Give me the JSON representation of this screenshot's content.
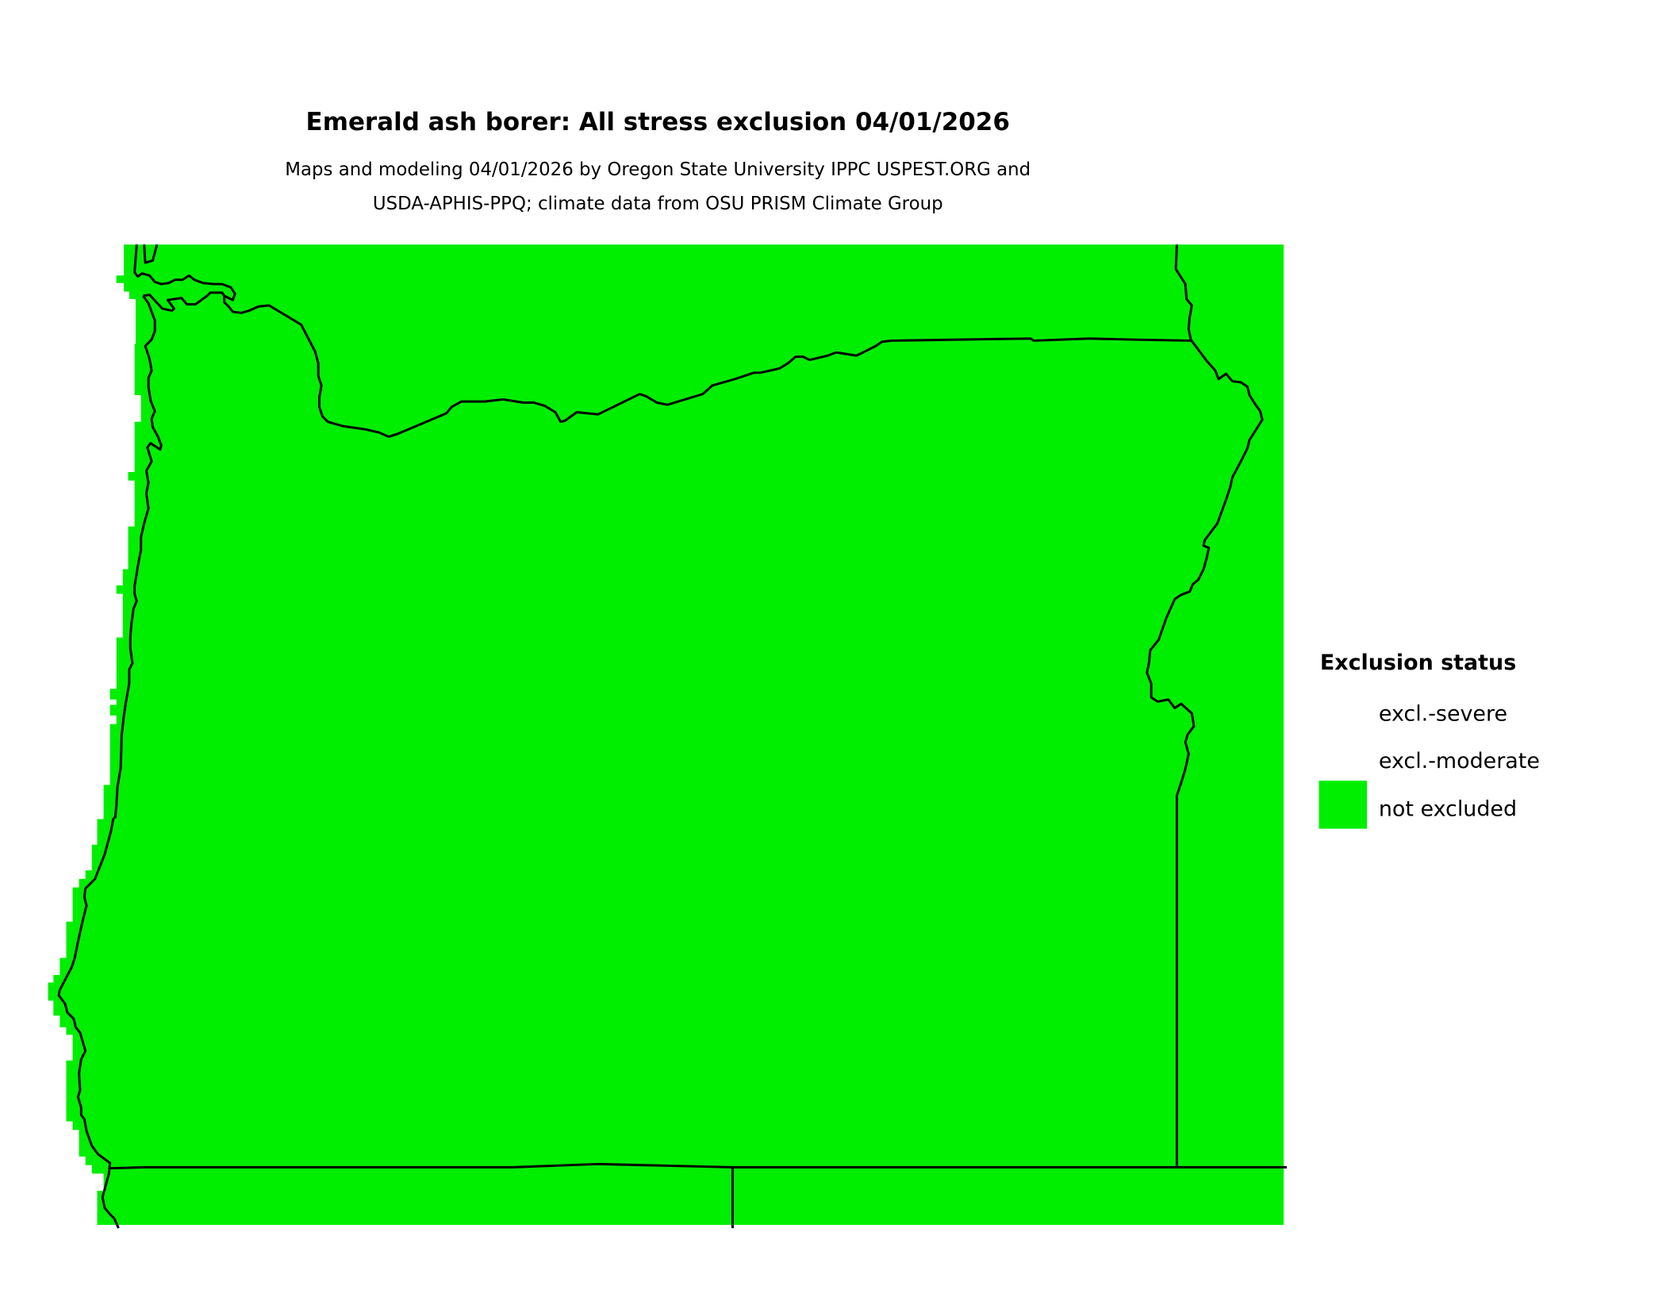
{
  "title": "Emerald ash borer: All stress exclusion 04/01/2026",
  "subtitle_line1": "Maps and modeling 04/01/2026 by Oregon State University IPPC USPEST.ORG and",
  "subtitle_line2": "USDA-APHIS-PPQ; climate data from OSU PRISM Climate Group",
  "legend": {
    "title": "Exclusion status",
    "items": [
      {
        "label": "excl.-severe",
        "color": ""
      },
      {
        "label": "excl.-moderate",
        "color": ""
      },
      {
        "label": "not excluded",
        "color": "#00ee00"
      }
    ]
  },
  "map": {
    "region": "Oregon",
    "fill_color": "#00ee00",
    "border_color": "#000000",
    "status_shown": "not excluded"
  }
}
